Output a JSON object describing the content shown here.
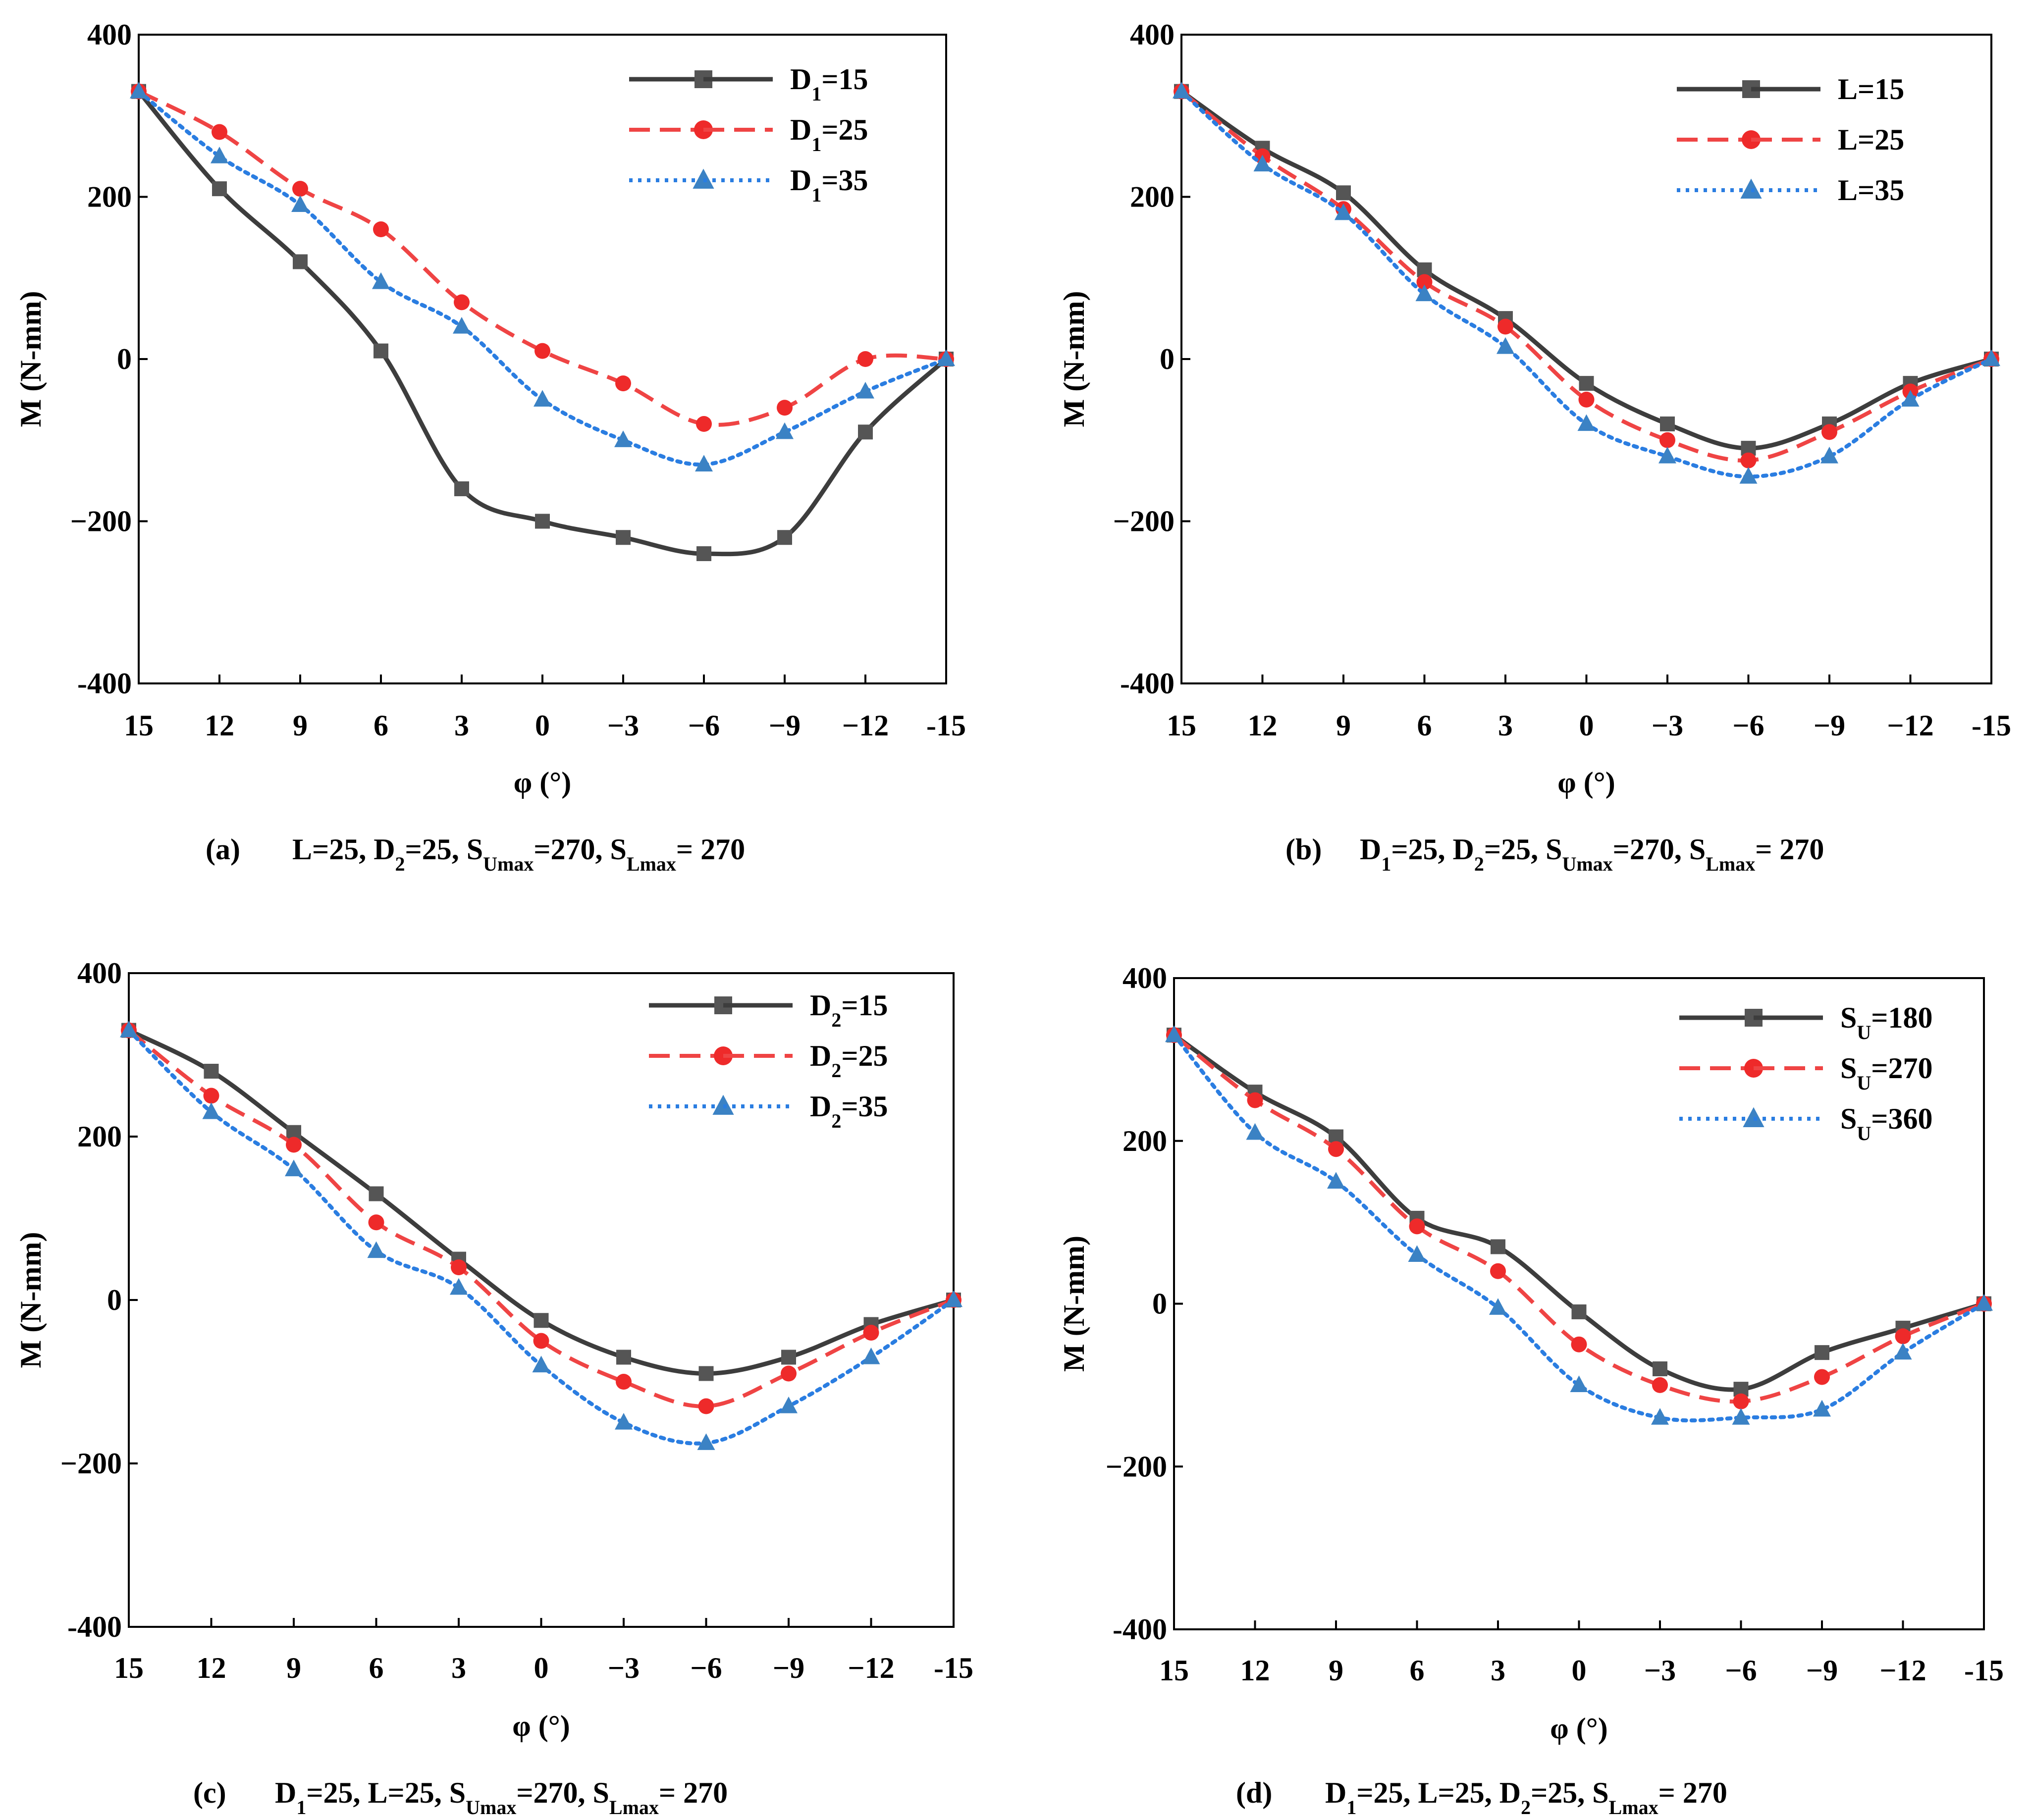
{
  "chart_data": [
    {
      "id": "a",
      "type": "line",
      "panel_label": "(a)",
      "caption": [
        {
          "t": "L=25, D"
        },
        {
          "t": "2",
          "sub": true
        },
        {
          "t": "=25, S"
        },
        {
          "t": "Umax",
          "sub": true
        },
        {
          "t": "=270, S"
        },
        {
          "t": "Lmax",
          "sub": true
        },
        {
          "t": "= 270"
        }
      ],
      "xlabel": "φ (°)",
      "ylabel": "M  (N-mm)",
      "x": [
        15,
        12,
        9,
        6,
        3,
        0,
        -3,
        -6,
        -9,
        -12,
        -15
      ],
      "x_tick_labels": [
        "15",
        "12",
        "9",
        "6",
        "3",
        "0",
        "−3",
        "−6",
        "−9",
        "−12",
        "-15"
      ],
      "ylim": [
        -400,
        400
      ],
      "y_ticks": [
        400,
        200,
        0,
        -200,
        -400
      ],
      "y_tick_labels": [
        "400",
        "200",
        "0",
        "−200",
        "-400"
      ],
      "legend_position": "top-right",
      "series": [
        {
          "name": [
            {
              "t": "D"
            },
            {
              "t": "1",
              "sub": true
            },
            {
              "t": "=15"
            }
          ],
          "style": "solid",
          "marker": "square",
          "color": "#3d3d3d",
          "marker_color": "#555555",
          "values": [
            330,
            210,
            120,
            10,
            -160,
            -200,
            -220,
            -240,
            -220,
            -90,
            0
          ]
        },
        {
          "name": [
            {
              "t": "D"
            },
            {
              "t": "1",
              "sub": true
            },
            {
              "t": "=25"
            }
          ],
          "style": "dash",
          "marker": "circle",
          "color": "#ef4444",
          "marker_color": "#ee2a2a",
          "values": [
            330,
            280,
            210,
            160,
            70,
            10,
            -30,
            -80,
            -60,
            0,
            0
          ]
        },
        {
          "name": [
            {
              "t": "D"
            },
            {
              "t": "1",
              "sub": true
            },
            {
              "t": "=35"
            }
          ],
          "style": "dot",
          "marker": "triangle",
          "color": "#2a7de1",
          "marker_color": "#3b82c4",
          "values": [
            330,
            250,
            190,
            95,
            40,
            -50,
            -100,
            -130,
            -90,
            -40,
            0
          ]
        }
      ]
    },
    {
      "id": "b",
      "type": "line",
      "panel_label": "(b)",
      "caption": [
        {
          "t": "D"
        },
        {
          "t": "1",
          "sub": true
        },
        {
          "t": "=25, D"
        },
        {
          "t": "2",
          "sub": true
        },
        {
          "t": "=25, S"
        },
        {
          "t": "Umax",
          "sub": true
        },
        {
          "t": "=270, S"
        },
        {
          "t": "Lmax",
          "sub": true
        },
        {
          "t": "= 270"
        }
      ],
      "xlabel": "φ (°)",
      "ylabel": "M  (N-mm)",
      "x": [
        15,
        12,
        9,
        6,
        3,
        0,
        -3,
        -6,
        -9,
        -12,
        -15
      ],
      "x_tick_labels": [
        "15",
        "12",
        "9",
        "6",
        "3",
        "0",
        "−3",
        "−6",
        "−9",
        "−12",
        "-15"
      ],
      "ylim": [
        -400,
        400
      ],
      "y_ticks": [
        400,
        200,
        0,
        -200,
        -400
      ],
      "y_tick_labels": [
        "400",
        "200",
        "0",
        "−200",
        "-400"
      ],
      "legend_position": "top-right",
      "series": [
        {
          "name": [
            {
              "t": "L=15"
            }
          ],
          "style": "solid",
          "marker": "square",
          "color": "#3d3d3d",
          "marker_color": "#555555",
          "values": [
            330,
            260,
            205,
            110,
            50,
            -30,
            -80,
            -110,
            -80,
            -30,
            0
          ]
        },
        {
          "name": [
            {
              "t": "L=25"
            }
          ],
          "style": "dash",
          "marker": "circle",
          "color": "#ef4444",
          "marker_color": "#ee2a2a",
          "values": [
            330,
            250,
            185,
            95,
            40,
            -50,
            -100,
            -125,
            -90,
            -40,
            0
          ]
        },
        {
          "name": [
            {
              "t": "L=35"
            }
          ],
          "style": "dot",
          "marker": "triangle",
          "color": "#2a7de1",
          "marker_color": "#3b82c4",
          "values": [
            330,
            240,
            180,
            80,
            15,
            -80,
            -120,
            -145,
            -120,
            -50,
            0
          ]
        }
      ]
    },
    {
      "id": "c",
      "type": "line",
      "panel_label": "(c)",
      "caption": [
        {
          "t": "D"
        },
        {
          "t": "1",
          "sub": true
        },
        {
          "t": "=25, L=25, S"
        },
        {
          "t": "Umax",
          "sub": true
        },
        {
          "t": "=270, S"
        },
        {
          "t": "Lmax",
          "sub": true
        },
        {
          "t": "= 270"
        }
      ],
      "xlabel": "φ (°)",
      "ylabel": "M  (N-mm)",
      "x": [
        15,
        12,
        9,
        6,
        3,
        0,
        -3,
        -6,
        -9,
        -12,
        -15
      ],
      "x_tick_labels": [
        "15",
        "12",
        "9",
        "6",
        "3",
        "0",
        "−3",
        "−6",
        "−9",
        "−12",
        "-15"
      ],
      "ylim": [
        -400,
        400
      ],
      "y_ticks": [
        400,
        200,
        0,
        -200,
        -400
      ],
      "y_tick_labels": [
        "400",
        "200",
        "0",
        "−200",
        "-400"
      ],
      "legend_position": "top-right",
      "series": [
        {
          "name": [
            {
              "t": "D"
            },
            {
              "t": "2",
              "sub": true
            },
            {
              "t": "=15"
            }
          ],
          "style": "solid",
          "marker": "square",
          "color": "#3d3d3d",
          "marker_color": "#555555",
          "values": [
            330,
            280,
            205,
            130,
            50,
            -25,
            -70,
            -90,
            -70,
            -30,
            0
          ]
        },
        {
          "name": [
            {
              "t": "D"
            },
            {
              "t": "2",
              "sub": true
            },
            {
              "t": "=25"
            }
          ],
          "style": "dash",
          "marker": "circle",
          "color": "#ef4444",
          "marker_color": "#ee2a2a",
          "values": [
            330,
            250,
            190,
            95,
            40,
            -50,
            -100,
            -130,
            -90,
            -40,
            0
          ]
        },
        {
          "name": [
            {
              "t": "D"
            },
            {
              "t": "2",
              "sub": true
            },
            {
              "t": "=35"
            }
          ],
          "style": "dot",
          "marker": "triangle",
          "color": "#2a7de1",
          "marker_color": "#3b82c4",
          "values": [
            330,
            230,
            160,
            60,
            15,
            -80,
            -150,
            -175,
            -130,
            -70,
            0
          ]
        }
      ]
    },
    {
      "id": "d",
      "type": "line",
      "panel_label": "(d)",
      "caption": [
        {
          "t": "D"
        },
        {
          "t": "1",
          "sub": true
        },
        {
          "t": "=25, L=25, D"
        },
        {
          "t": "2",
          "sub": true
        },
        {
          "t": "=25, S"
        },
        {
          "t": "Lmax",
          "sub": true
        },
        {
          "t": "= 270"
        }
      ],
      "xlabel": "φ (°)",
      "ylabel": "M  (N-mm)",
      "x": [
        15,
        12,
        9,
        6,
        3,
        0,
        -3,
        -6,
        -9,
        -12,
        -15
      ],
      "x_tick_labels": [
        "15",
        "12",
        "9",
        "6",
        "3",
        "0",
        "−3",
        "−6",
        "−9",
        "−12",
        "-15"
      ],
      "ylim": [
        -400,
        400
      ],
      "y_ticks": [
        400,
        200,
        0,
        -200,
        -400
      ],
      "y_tick_labels": [
        "400",
        "200",
        "0",
        "−200",
        "-400"
      ],
      "legend_position": "top-right",
      "series": [
        {
          "name": [
            {
              "t": "S"
            },
            {
              "t": "U",
              "sub": true
            },
            {
              "t": "=180"
            }
          ],
          "style": "solid",
          "marker": "square",
          "color": "#3d3d3d",
          "marker_color": "#555555",
          "values": [
            330,
            260,
            205,
            105,
            70,
            -10,
            -80,
            -105,
            -60,
            -30,
            0
          ]
        },
        {
          "name": [
            {
              "t": "S"
            },
            {
              "t": "U",
              "sub": true
            },
            {
              "t": "=270"
            }
          ],
          "style": "dash",
          "marker": "circle",
          "color": "#ef4444",
          "marker_color": "#ee2a2a",
          "values": [
            330,
            250,
            190,
            95,
            40,
            -50,
            -100,
            -120,
            -90,
            -40,
            0
          ]
        },
        {
          "name": [
            {
              "t": "S"
            },
            {
              "t": "U",
              "sub": true
            },
            {
              "t": "=360"
            }
          ],
          "style": "dot",
          "marker": "triangle",
          "color": "#2a7de1",
          "marker_color": "#3b82c4",
          "values": [
            330,
            210,
            150,
            60,
            -5,
            -100,
            -140,
            -140,
            -130,
            -60,
            0
          ]
        }
      ]
    }
  ]
}
